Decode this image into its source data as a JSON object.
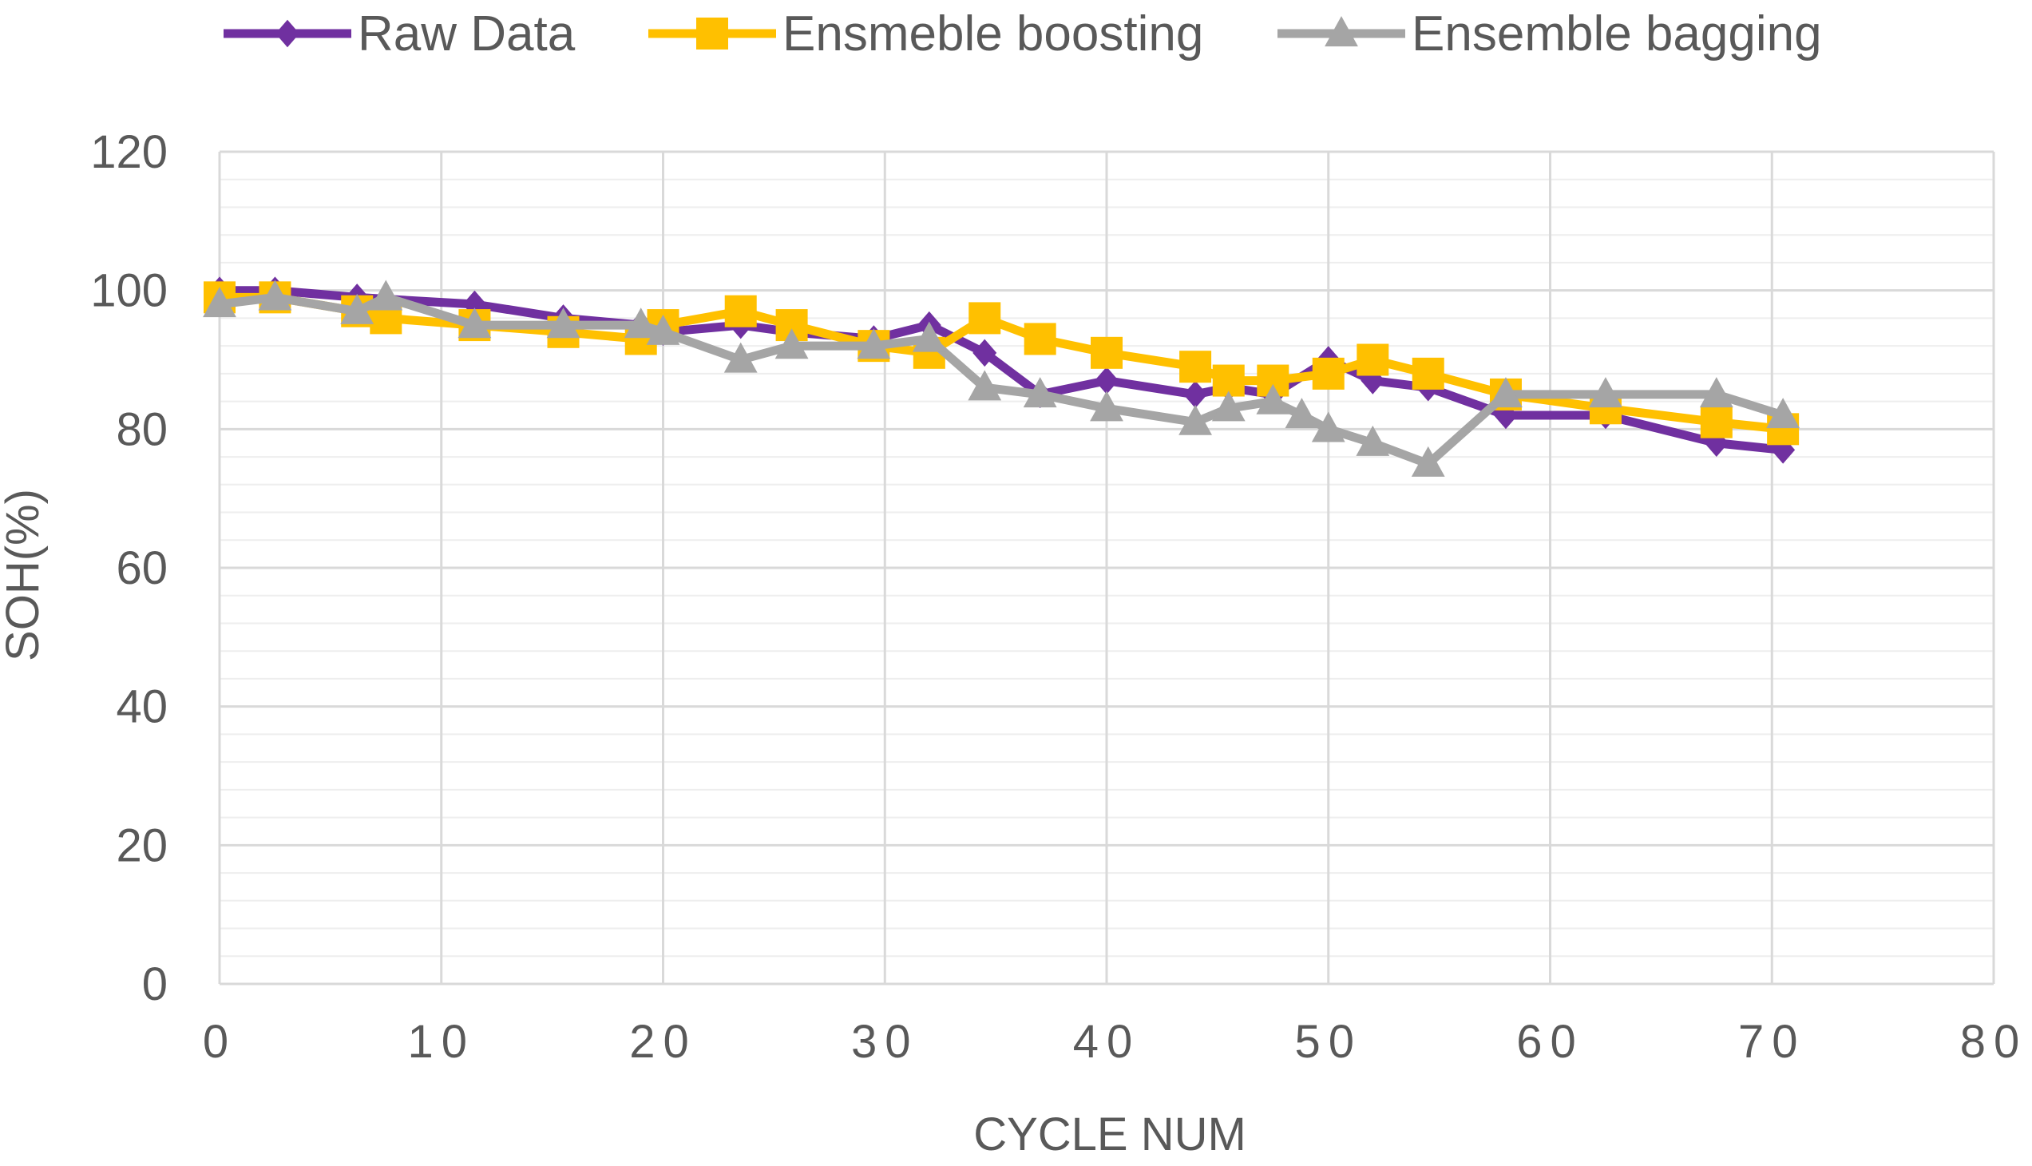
{
  "chart_data": {
    "type": "line",
    "title": "",
    "xlabel": "CYCLE NUM",
    "ylabel": "SOH(%)",
    "xlim": [
      0,
      80
    ],
    "ylim": [
      0,
      120
    ],
    "x_ticks": [
      0,
      10,
      20,
      30,
      40,
      50,
      60,
      70,
      80
    ],
    "y_ticks": [
      0,
      20,
      40,
      60,
      80,
      100,
      120
    ],
    "x_tick_labels": [
      "0",
      "10",
      "20",
      "30",
      "40",
      "50",
      "60",
      "70",
      "80"
    ],
    "y_tick_labels": [
      "0",
      "20",
      "40",
      "60",
      "80",
      "100",
      "120"
    ],
    "grid": true,
    "legend_position": "top",
    "series": [
      {
        "name": "Raw Data",
        "color": "#7030a0",
        "marker": "diamond",
        "points": [
          [
            0,
            100
          ],
          [
            2.5,
            100
          ],
          [
            6.2,
            99
          ],
          [
            11.5,
            98
          ],
          [
            15.5,
            96
          ],
          [
            19,
            95
          ],
          [
            20,
            94
          ],
          [
            23.5,
            95
          ],
          [
            25.8,
            94
          ],
          [
            29.5,
            93
          ],
          [
            32,
            95
          ],
          [
            34.5,
            91
          ],
          [
            37,
            85
          ],
          [
            40,
            87
          ],
          [
            44,
            85
          ],
          [
            45.5,
            86
          ],
          [
            47.5,
            85
          ],
          [
            50,
            90
          ],
          [
            52,
            87
          ],
          [
            54.5,
            86
          ],
          [
            58,
            82
          ],
          [
            62.5,
            82
          ],
          [
            67.5,
            78
          ],
          [
            70.5,
            77
          ]
        ]
      },
      {
        "name": "Ensmeble boosting",
        "color": "#ffc000",
        "marker": "square",
        "points": [
          [
            0,
            99
          ],
          [
            2.5,
            99
          ],
          [
            6.2,
            97
          ],
          [
            7.5,
            96
          ],
          [
            11.5,
            95
          ],
          [
            15.5,
            94
          ],
          [
            19,
            93
          ],
          [
            20,
            95
          ],
          [
            23.5,
            97
          ],
          [
            25.8,
            95
          ],
          [
            29.5,
            92
          ],
          [
            32,
            91
          ],
          [
            34.5,
            96
          ],
          [
            37,
            93
          ],
          [
            40,
            91
          ],
          [
            44,
            89
          ],
          [
            45.5,
            87
          ],
          [
            47.5,
            87
          ],
          [
            50,
            88
          ],
          [
            52,
            90
          ],
          [
            54.5,
            88
          ],
          [
            58,
            85
          ],
          [
            62.5,
            83
          ],
          [
            67.5,
            81
          ],
          [
            70.5,
            80
          ]
        ]
      },
      {
        "name": "Ensemble bagging",
        "color": "#a5a5a5",
        "marker": "triangle",
        "points": [
          [
            0,
            98
          ],
          [
            2.5,
            99
          ],
          [
            6.2,
            97
          ],
          [
            7.5,
            99
          ],
          [
            11.5,
            95
          ],
          [
            15.5,
            95
          ],
          [
            19,
            95
          ],
          [
            20,
            94
          ],
          [
            23.5,
            90
          ],
          [
            25.8,
            92
          ],
          [
            29.5,
            92
          ],
          [
            32,
            93
          ],
          [
            34.5,
            86
          ],
          [
            37,
            85
          ],
          [
            40,
            83
          ],
          [
            44,
            81
          ],
          [
            45.5,
            83
          ],
          [
            47.5,
            84
          ],
          [
            48.8,
            82
          ],
          [
            50,
            80
          ],
          [
            52,
            78
          ],
          [
            54.5,
            75
          ],
          [
            58,
            85
          ],
          [
            62.5,
            85
          ],
          [
            67.5,
            85
          ],
          [
            70.5,
            82
          ]
        ]
      }
    ]
  }
}
